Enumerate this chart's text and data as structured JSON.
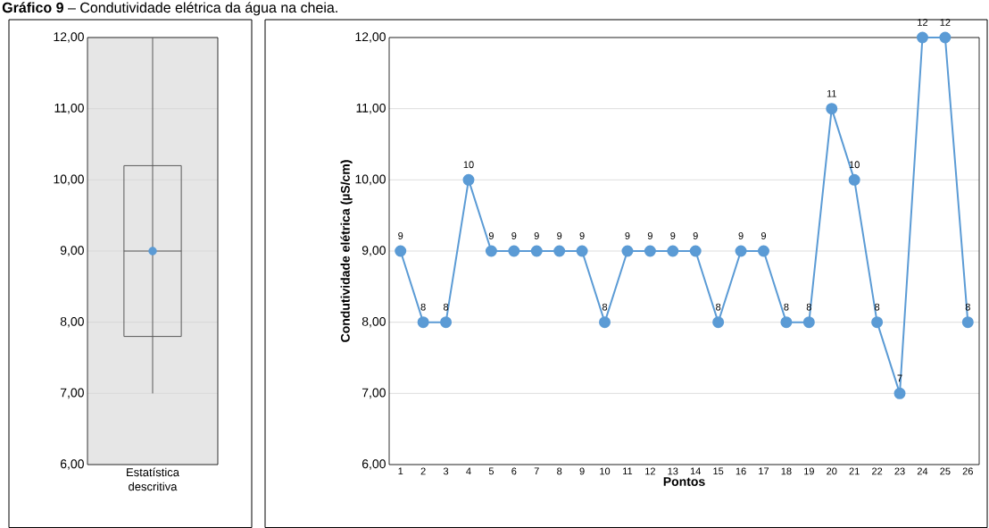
{
  "chart_data": [
    {
      "type": "box",
      "title": "**Gráfico 9** – Condutividade elétrica da água na cheia.",
      "categories": [
        "Estatística descritiva"
      ],
      "color": "#595959",
      "grid": "y",
      "boxes": [
        {
          "low": 7,
          "q1": 7.8,
          "median": 9,
          "q3": 10.2,
          "high": 12,
          "mean": 9
        }
      ],
      "ylim": [
        6,
        12
      ],
      "yticks": [
        {
          "value": 6,
          "label": "6,00"
        },
        {
          "value": 7,
          "label": "7,00"
        },
        {
          "value": 8,
          "label": "8,00"
        },
        {
          "value": 9,
          "label": "9,00"
        },
        {
          "value": 10,
          "label": "10,00"
        },
        {
          "value": 11,
          "label": "11,00"
        },
        {
          "value": 12,
          "label": "12,00"
        }
      ]
    },
    {
      "type": "line",
      "xlabel": "Pontos",
      "ylabel": "Condutividade elétrica (µS/cm)",
      "color": "#5b9bd5",
      "marker": "circle",
      "data_labels": true,
      "grid": "y",
      "categories": [
        "1",
        "2",
        "3",
        "4",
        "5",
        "6",
        "7",
        "8",
        "9",
        "10",
        "11",
        "12",
        "13",
        "14",
        "15",
        "16",
        "17",
        "18",
        "19",
        "20",
        "21",
        "22",
        "23",
        "24",
        "25",
        "26"
      ],
      "values": [
        9,
        8,
        8,
        10,
        9,
        9,
        9,
        9,
        9,
        8,
        9,
        9,
        9,
        9,
        8,
        9,
        9,
        8,
        8,
        11,
        10,
        8,
        7,
        12,
        12,
        8
      ],
      "ylim": [
        6,
        12
      ],
      "yticks": [
        {
          "value": 6,
          "label": "6,00"
        },
        {
          "value": 7,
          "label": "7,00"
        },
        {
          "value": 8,
          "label": "8,00"
        },
        {
          "value": 9,
          "label": "9,00"
        },
        {
          "value": 10,
          "label": "10,00"
        },
        {
          "value": 11,
          "label": "11,00"
        },
        {
          "value": 12,
          "label": "12,00"
        }
      ]
    }
  ]
}
